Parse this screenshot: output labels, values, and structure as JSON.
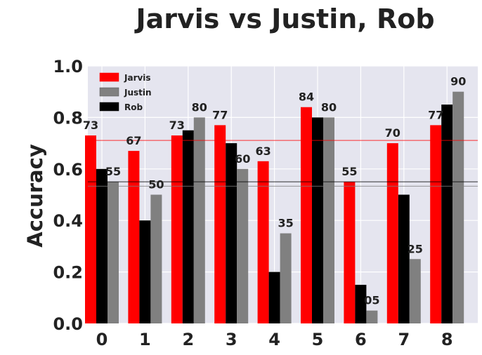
{
  "chart_data": {
    "type": "bar",
    "title": "Jarvis vs Justin, Rob",
    "xlabel": "",
    "ylabel": "Accuracy",
    "ylim": [
      0.0,
      1.0
    ],
    "yticks": [
      "0.0",
      "0.2",
      "0.4",
      "0.6",
      "0.8",
      "1.0"
    ],
    "categories": [
      "0",
      "1",
      "2",
      "3",
      "4",
      "5",
      "6",
      "7",
      "8"
    ],
    "grid": true,
    "legend_position": "top-left",
    "series": [
      {
        "name": "Jarvis",
        "color": "#ff0000",
        "values": [
          0.73,
          0.67,
          0.73,
          0.77,
          0.63,
          0.84,
          0.55,
          0.7,
          0.77
        ],
        "labels": [
          "73",
          "67",
          "73",
          "77",
          "63",
          "84",
          "55",
          "70",
          "77"
        ]
      },
      {
        "name": "Justin",
        "color": "#808080",
        "values": [
          0.55,
          0.5,
          0.8,
          0.6,
          0.35,
          0.8,
          0.05,
          0.25,
          0.9
        ],
        "labels": [
          "55",
          "50",
          "80",
          "60",
          "35",
          "80",
          "05",
          "25",
          "90"
        ]
      },
      {
        "name": "Rob",
        "color": "#000000",
        "values": [
          0.6,
          0.4,
          0.75,
          0.7,
          0.2,
          0.8,
          0.15,
          0.5,
          0.85
        ],
        "labels": []
      }
    ],
    "reference_lines": [
      {
        "series": "Jarvis",
        "value": 0.711,
        "color": "#ff0000"
      },
      {
        "series": "Rob",
        "value": 0.55,
        "color": "#000000"
      },
      {
        "series": "Justin",
        "value": 0.533,
        "color": "#808080"
      }
    ]
  }
}
